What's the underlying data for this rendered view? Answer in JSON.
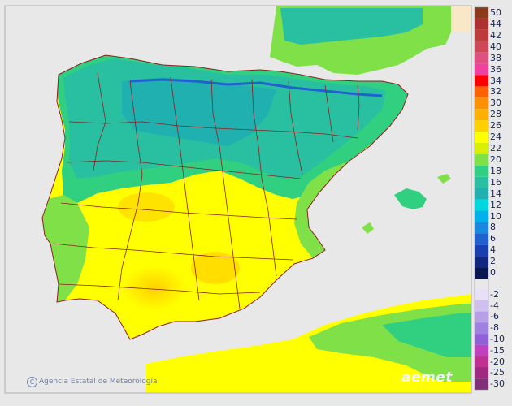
{
  "map": {
    "credit": "Agencia Estatal de Meteorología",
    "brand": "aemet",
    "colors": {
      "sea": "#e8e8e8",
      "frame": "#b0b0b0",
      "border_line": "#8b2020"
    }
  },
  "legend": {
    "items": [
      {
        "label": "50",
        "color": "#8b3a1a"
      },
      {
        "label": "44",
        "color": "#b03030"
      },
      {
        "label": "42",
        "color": "#c03a3a"
      },
      {
        "label": "40",
        "color": "#d04858"
      },
      {
        "label": "38",
        "color": "#e05080"
      },
      {
        "label": "36",
        "color": "#f040a0"
      },
      {
        "label": "34",
        "color": "#ff0000"
      },
      {
        "label": "32",
        "color": "#ff6000"
      },
      {
        "label": "30",
        "color": "#ff9000"
      },
      {
        "label": "28",
        "color": "#ffb000"
      },
      {
        "label": "26",
        "color": "#ffd000"
      },
      {
        "label": "24",
        "color": "#ffff00"
      },
      {
        "label": "22",
        "color": "#d8f000"
      },
      {
        "label": "20",
        "color": "#80e048"
      },
      {
        "label": "18",
        "color": "#30d080"
      },
      {
        "label": "16",
        "color": "#28c0a0"
      },
      {
        "label": "14",
        "color": "#20b0b0"
      },
      {
        "label": "12",
        "color": "#00d8e0"
      },
      {
        "label": "10",
        "color": "#00b0e8"
      },
      {
        "label": "8",
        "color": "#1888e0"
      },
      {
        "label": "6",
        "color": "#2060d0"
      },
      {
        "label": "4",
        "color": "#1840b0"
      },
      {
        "label": "2",
        "color": "#102880"
      },
      {
        "label": "0",
        "color": "#0a1850"
      },
      {
        "label": "-2",
        "color": "#e8e0f8"
      },
      {
        "label": "-4",
        "color": "#d0c0f0"
      },
      {
        "label": "-6",
        "color": "#b8a0e8"
      },
      {
        "label": "-8",
        "color": "#a080e0"
      },
      {
        "label": "-10",
        "color": "#9060d8"
      },
      {
        "label": "-15",
        "color": "#c040c0"
      },
      {
        "label": "-20",
        "color": "#c03090"
      },
      {
        "label": "-25",
        "color": "#a02880"
      },
      {
        "label": "-30",
        "color": "#803078"
      }
    ]
  }
}
